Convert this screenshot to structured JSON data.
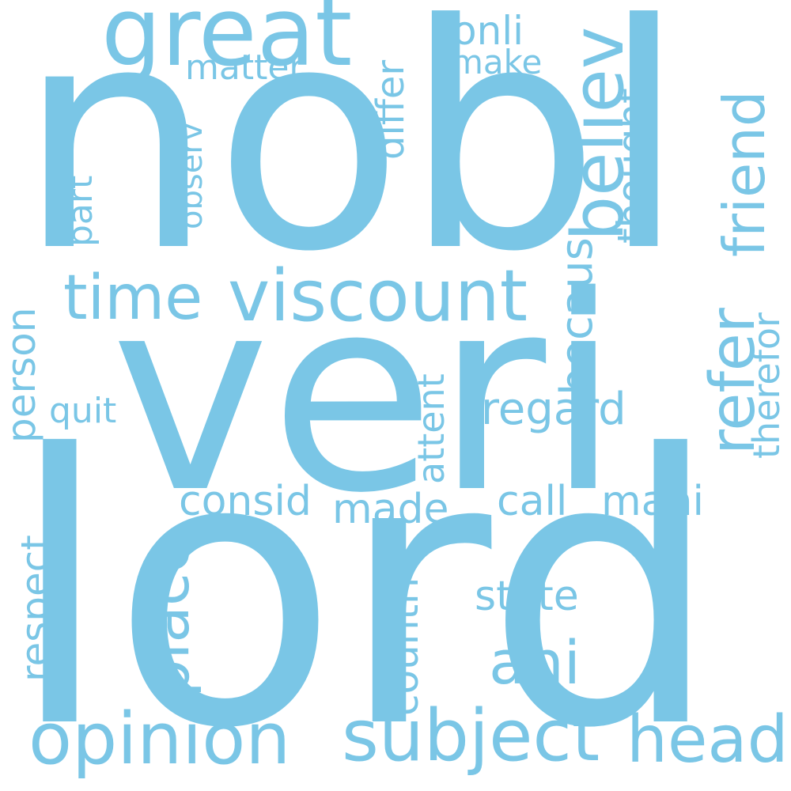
{
  "word_color": "#7ac6e6",
  "background": "#ffffff",
  "words": [
    {
      "id": "nobl",
      "text": "nobl"
    },
    {
      "id": "veri",
      "text": "veri"
    },
    {
      "id": "lord",
      "text": "lord"
    },
    {
      "id": "great",
      "text": "great"
    },
    {
      "id": "viscount",
      "text": "viscount"
    },
    {
      "id": "opinion",
      "text": "opinion"
    },
    {
      "id": "subject",
      "text": "subject"
    },
    {
      "id": "head",
      "text": "head"
    },
    {
      "id": "time",
      "text": "time"
    },
    {
      "id": "friend",
      "text": "friend"
    },
    {
      "id": "believ",
      "text": "believ"
    },
    {
      "id": "refer",
      "text": "refer"
    },
    {
      "id": "place",
      "text": "place"
    },
    {
      "id": "ani",
      "text": "ani"
    },
    {
      "id": "regard",
      "text": "regard"
    },
    {
      "id": "consid",
      "text": "consid"
    },
    {
      "id": "made",
      "text": "made"
    },
    {
      "id": "call",
      "text": "call"
    },
    {
      "id": "mani",
      "text": "mani"
    },
    {
      "id": "state",
      "text": "state"
    },
    {
      "id": "countri",
      "text": "countri"
    },
    {
      "id": "attent",
      "text": "attent"
    },
    {
      "id": "becaus",
      "text": "becaus"
    },
    {
      "id": "therefor",
      "text": "therefor"
    },
    {
      "id": "person",
      "text": "person"
    },
    {
      "id": "respect",
      "text": "respect"
    },
    {
      "id": "quit",
      "text": "quit"
    },
    {
      "id": "part",
      "text": "part"
    },
    {
      "id": "observ",
      "text": "observ"
    },
    {
      "id": "matter",
      "text": "matter"
    },
    {
      "id": "onli",
      "text": "onli"
    },
    {
      "id": "make",
      "text": "make"
    },
    {
      "id": "differ",
      "text": "differ"
    },
    {
      "id": "thought",
      "text": "thought"
    }
  ]
}
